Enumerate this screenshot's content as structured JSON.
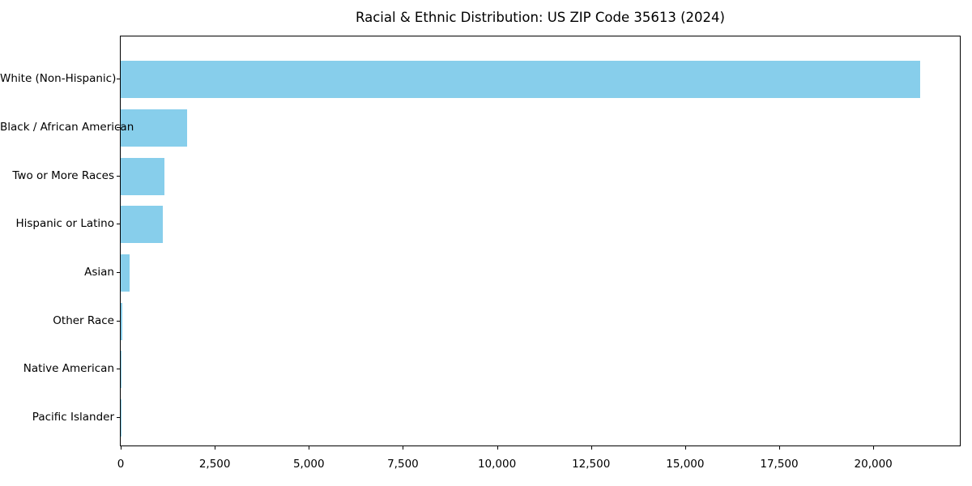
{
  "chart_data": {
    "type": "bar",
    "orientation": "horizontal",
    "title": "Racial & Ethnic Distribution: US ZIP Code 35613 (2024)",
    "categories": [
      "White (Non-Hispanic)",
      "Black / African American",
      "Two or More Races",
      "Hispanic or Latino",
      "Asian",
      "Other Race",
      "Native American",
      "Pacific Islander"
    ],
    "values": [
      21250,
      1760,
      1170,
      1120,
      230,
      40,
      25,
      10
    ],
    "bar_color": "#87CEEB",
    "xlabel": "",
    "ylabel": "",
    "xlim": [
      0,
      22300
    ],
    "xticks": [
      0,
      2500,
      5000,
      7500,
      10000,
      12500,
      15000,
      17500,
      20000
    ],
    "xtick_labels": [
      "0",
      "2,500",
      "5,000",
      "7,500",
      "10,000",
      "12,500",
      "15,000",
      "17,500",
      "20,000"
    ],
    "grid": "off",
    "legend": "none"
  }
}
